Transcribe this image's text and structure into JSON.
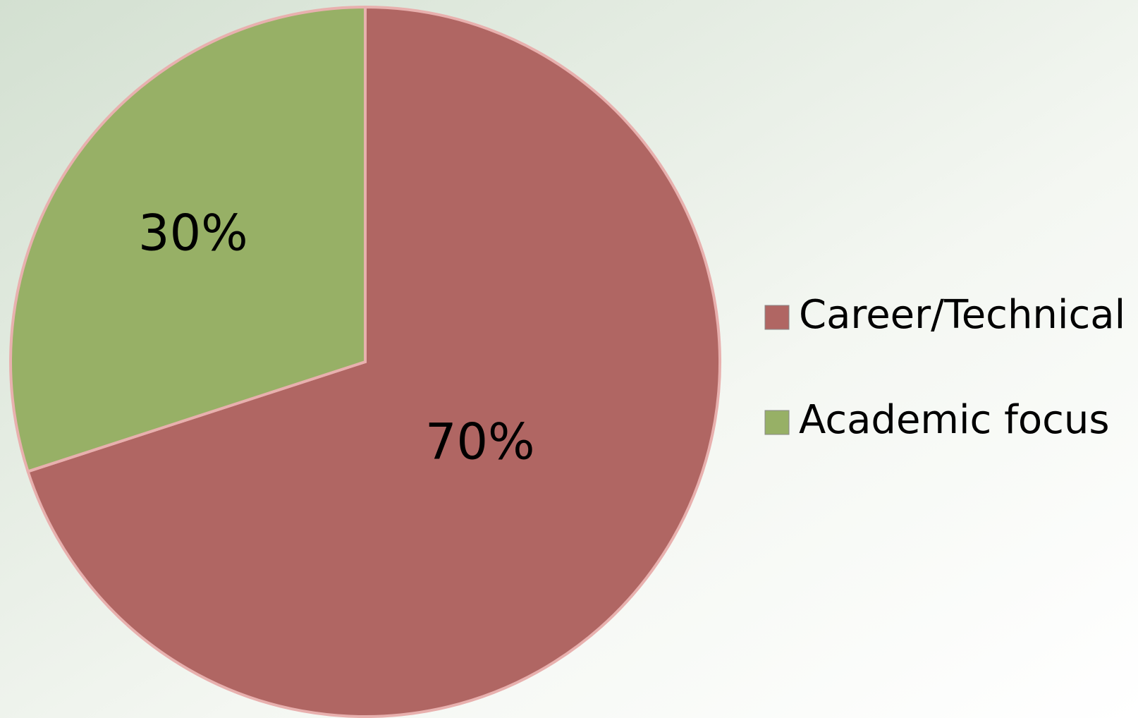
{
  "chart_data": {
    "type": "pie",
    "categories": [
      "Career/Technical",
      "Academic focus"
    ],
    "values": [
      70,
      30
    ],
    "value_labels": [
      "70%",
      "30%"
    ],
    "colors": [
      "#b06663",
      "#97b066"
    ],
    "legend": "right"
  }
}
